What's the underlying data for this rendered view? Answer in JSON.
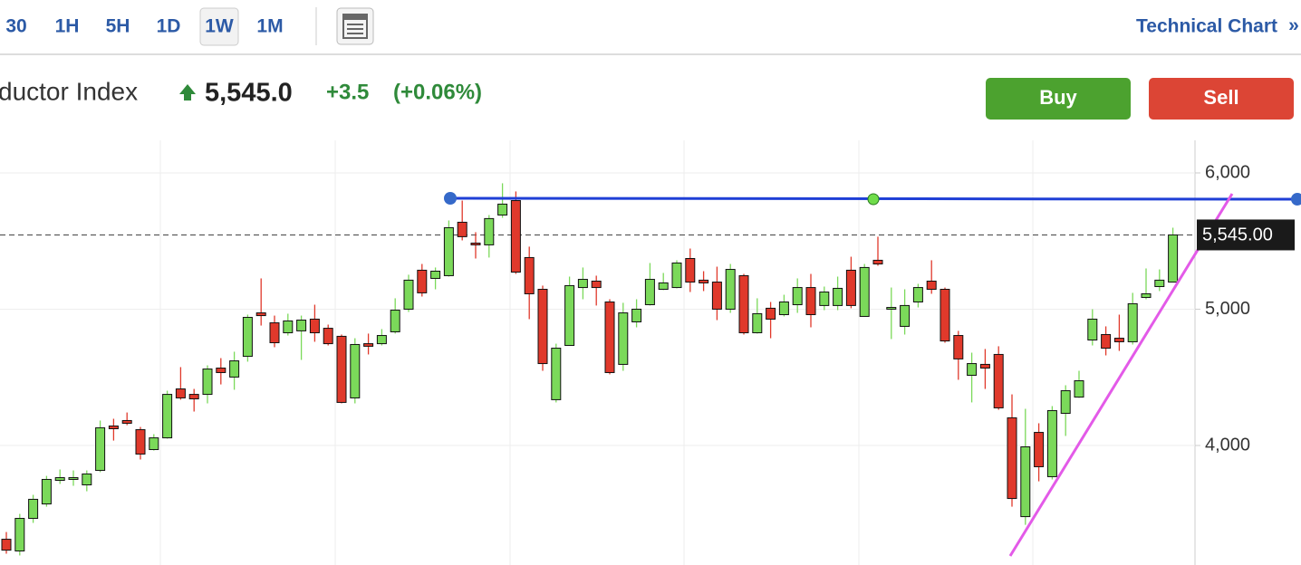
{
  "toolbar": {
    "intervals": [
      "30",
      "1H",
      "5H",
      "1D",
      "1W",
      "1M"
    ],
    "link": "Technical Chart",
    "link_icon": "»"
  },
  "header": {
    "name": "ductor Index",
    "price": "5,545.0",
    "change": "+3.5",
    "change_pct": "(+0.06%)",
    "buy": "Buy",
    "sell": "Sell"
  },
  "chart_data": {
    "type": "candlestick",
    "up_color": "#7bd95a",
    "down_color": "#e0392b",
    "ylim": [
      3123,
      6239
    ],
    "yticks": [
      {
        "value": 4000,
        "label": "4,000"
      },
      {
        "value": 5000,
        "label": "5,000"
      },
      {
        "value": 6000,
        "label": "6,000"
      }
    ],
    "last_price": {
      "value": 5545,
      "label": "5,545.00"
    },
    "open": [
      3312,
      3226,
      3465,
      3571,
      3744,
      3751,
      3711,
      3817,
      4143,
      4183,
      4116,
      3970,
      4056,
      4415,
      4375,
      4375,
      4568,
      4502,
      4654,
      4973,
      4900,
      4827,
      4841,
      4927,
      4860,
      4801,
      4349,
      4747,
      4747,
      4834,
      5000,
      5286,
      5226,
      5246,
      5638,
      5485,
      5472,
      5691,
      5797,
      5379,
      5146,
      4336,
      4734,
      5159,
      5206,
      5053,
      4595,
      4907,
      5033,
      5146,
      5159,
      5372,
      5213,
      5199,
      5000,
      5246,
      4827,
      5007,
      4960,
      5033,
      5159,
      5027,
      5027,
      5286,
      4947,
      5359,
      5000,
      4874,
      5053,
      5206,
      5146,
      4807,
      4515,
      4595,
      4668,
      4203,
      3478,
      4096,
      3771,
      4236,
      4355,
      4774,
      4814,
      4787,
      4761,
      5086,
      5166,
      5199
    ],
    "high": [
      3365,
      3498,
      3638,
      3777,
      3824,
      3817,
      3817,
      4183,
      4196,
      4242,
      4136,
      4083,
      4402,
      4575,
      4415,
      4588,
      4641,
      4688,
      4960,
      5226,
      4953,
      4967,
      4953,
      5033,
      4887,
      4814,
      4787,
      4821,
      4854,
      5080,
      5253,
      5332,
      5306,
      5651,
      5797,
      5565,
      5691,
      5924,
      5864,
      5459,
      5173,
      4747,
      5239,
      5306,
      5246,
      5073,
      5047,
      5073,
      5339,
      5266,
      5359,
      5445,
      5279,
      5312,
      5332,
      5259,
      5080,
      5053,
      5106,
      5226,
      5259,
      5166,
      5239,
      5385,
      5332,
      5532,
      5159,
      5146,
      5186,
      5359,
      5159,
      4841,
      4681,
      4708,
      4728,
      4375,
      4269,
      4163,
      4289,
      4442,
      4548,
      5000,
      4874,
      4960,
      5120,
      5299,
      5292,
      5598
    ],
    "low": [
      3206,
      3193,
      3432,
      3551,
      3718,
      3704,
      3664,
      3804,
      4036,
      4149,
      3897,
      3963,
      4050,
      4336,
      4249,
      4309,
      4448,
      4409,
      4615,
      4880,
      4721,
      4807,
      4628,
      4761,
      4734,
      4309,
      4309,
      4668,
      4734,
      4821,
      4980,
      5093,
      5146,
      5239,
      5505,
      5372,
      5379,
      5671,
      5259,
      4927,
      4548,
      4316,
      4734,
      5073,
      5027,
      4522,
      4548,
      4867,
      5027,
      5140,
      5153,
      5126,
      5133,
      4920,
      4973,
      4814,
      4821,
      4787,
      4947,
      4973,
      4867,
      4993,
      4993,
      5007,
      4947,
      5319,
      4781,
      4814,
      5013,
      5113,
      4754,
      4482,
      4316,
      4415,
      4262,
      3551,
      3418,
      3737,
      3751,
      4070,
      4349,
      4734,
      4661,
      4694,
      4741,
      5073,
      5133,
      5199
    ],
    "close": [
      3232,
      3465,
      3605,
      3751,
      3764,
      3764,
      3791,
      4130,
      4123,
      4163,
      3937,
      4056,
      4375,
      4349,
      4342,
      4561,
      4535,
      4621,
      4940,
      4953,
      4754,
      4914,
      4920,
      4827,
      4747,
      4316,
      4741,
      4728,
      4807,
      4993,
      5213,
      5120,
      5279,
      5598,
      5532,
      5472,
      5665,
      5771,
      5272,
      5113,
      4601,
      4714,
      5173,
      5219,
      5159,
      4535,
      4973,
      5000,
      5219,
      5193,
      5339,
      5199,
      5193,
      5000,
      5292,
      4827,
      4967,
      4927,
      5053,
      5159,
      4960,
      5126,
      5153,
      5027,
      5306,
      5332,
      5013,
      5027,
      5159,
      5146,
      4767,
      4635,
      4601,
      4568,
      4276,
      3611,
      3990,
      3844,
      4256,
      4402,
      4475,
      4927,
      4714,
      4761,
      5040,
      5113,
      5213,
      5545
    ]
  }
}
